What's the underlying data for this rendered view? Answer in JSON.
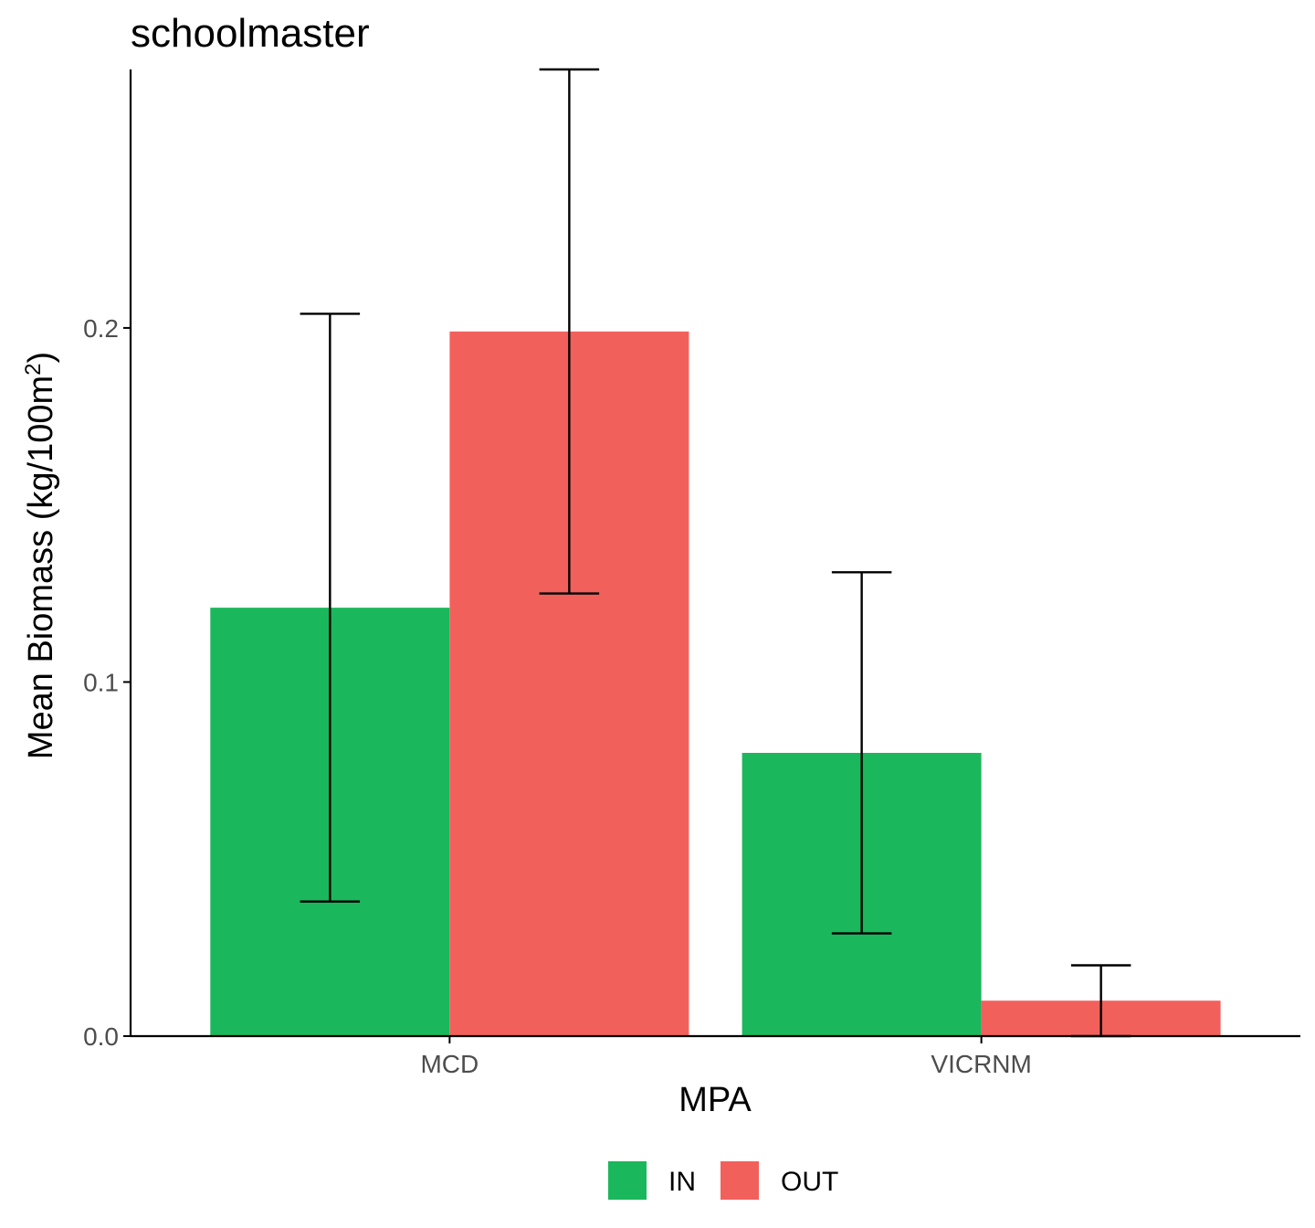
{
  "chart_data": {
    "type": "bar",
    "title": "schoolmaster",
    "xlabel": "MPA",
    "ylabel": "Mean Biomass (kg/100m²)",
    "categories": [
      "MCD",
      "VICRNM"
    ],
    "series": [
      {
        "name": "IN",
        "color": "#1bb75c",
        "values": [
          0.121,
          0.08
        ],
        "error_low": [
          0.038,
          0.029
        ],
        "error_high": [
          0.204,
          0.131
        ]
      },
      {
        "name": "OUT",
        "color": "#f2605c",
        "values": [
          0.199,
          0.01
        ],
        "error_low": [
          0.125,
          0.0
        ],
        "error_high": [
          0.273,
          0.02
        ]
      }
    ],
    "ylim": [
      0,
      0.273
    ],
    "yticks": [
      0.0,
      0.1,
      0.2
    ],
    "ytick_labels": [
      "0.0",
      "0.1",
      "0.2"
    ],
    "grid": false,
    "legend_position": "bottom"
  }
}
